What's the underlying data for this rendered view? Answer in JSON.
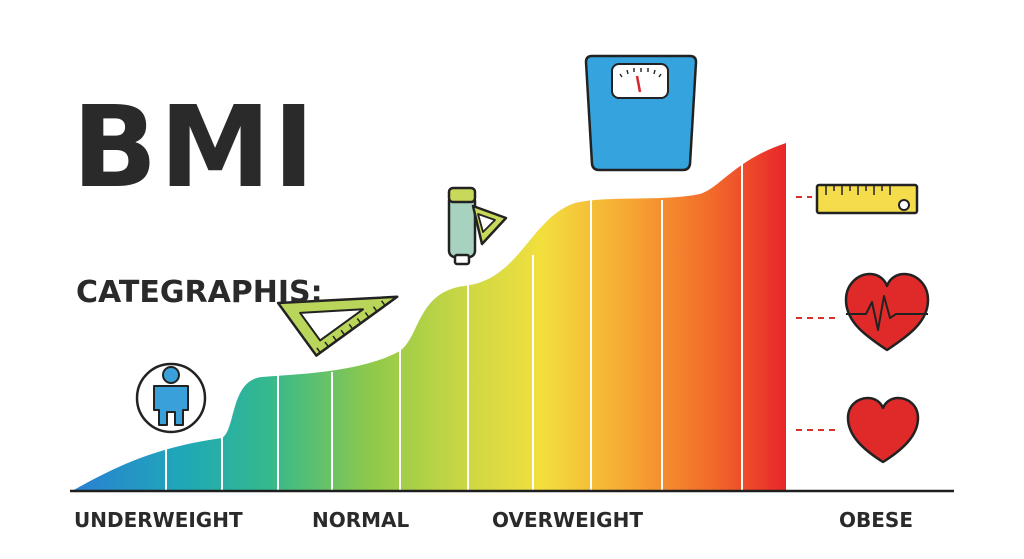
{
  "title": "BMI",
  "subtitle": "CATEGRAPHIS:",
  "categories": [
    "UNDERWEIGHT",
    "NORMAL",
    "OVERWEIGHT",
    "OBESE"
  ],
  "icons": {
    "person": "person-in-circle-icon",
    "set_square": "set-square-ruler-icon",
    "caliper": "measuring-tool-icon",
    "scale": "bathroom-scale-icon",
    "tape_ruler": "ruler-icon",
    "heartbeat": "heartbeat-heart-icon",
    "heart": "heart-icon"
  },
  "colors": {
    "gradient": [
      "#2a7fd4",
      "#24b3a1",
      "#5cc06a",
      "#b8d447",
      "#f2df3e",
      "#f6a733",
      "#f2682a",
      "#e8262a"
    ],
    "text": "#2a2a2a",
    "scale_body": "#35a3dd",
    "heart": "#e02a2a",
    "ruler": "#f5dc4a",
    "set_square": "#b9d65a"
  }
}
